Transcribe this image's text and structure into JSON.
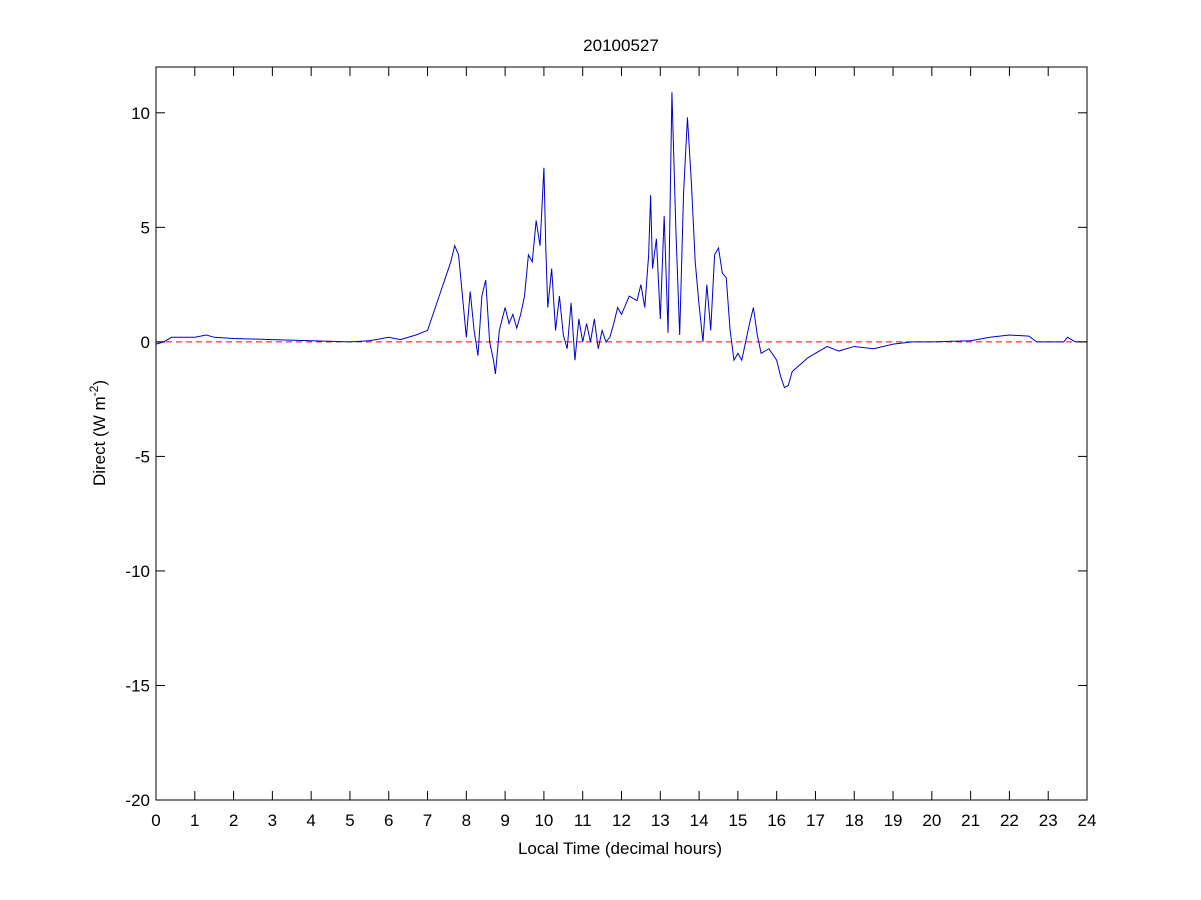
{
  "chart_data": {
    "type": "line",
    "title": "20100527",
    "xlabel": "Local Time (decimal hours)",
    "ylabel": {
      "text": "Direct (W m",
      "superscript": "-2",
      "suffix": ")"
    },
    "xlim": [
      0,
      24
    ],
    "ylim": [
      -20,
      12
    ],
    "xticks": [
      0,
      1,
      2,
      3,
      4,
      5,
      6,
      7,
      8,
      9,
      10,
      11,
      12,
      13,
      14,
      15,
      16,
      17,
      18,
      19,
      20,
      21,
      22,
      23,
      24
    ],
    "yticks": [
      -20,
      -15,
      -10,
      -5,
      0,
      5,
      10
    ],
    "reference_line": {
      "value": 0,
      "color": "#ff0000"
    },
    "x": [
      0,
      0.2,
      0.4,
      1.0,
      1.3,
      1.5,
      2,
      3,
      4,
      5,
      5.5,
      6,
      6.3,
      6.7,
      7.0,
      7.2,
      7.4,
      7.6,
      7.7,
      7.8,
      7.9,
      8.0,
      8.1,
      8.2,
      8.3,
      8.4,
      8.5,
      8.6,
      8.7,
      8.75,
      8.85,
      9.0,
      9.1,
      9.2,
      9.3,
      9.4,
      9.5,
      9.6,
      9.7,
      9.8,
      9.9,
      10.0,
      10.05,
      10.1,
      10.2,
      10.3,
      10.4,
      10.5,
      10.6,
      10.7,
      10.8,
      10.9,
      11.0,
      11.1,
      11.2,
      11.3,
      11.4,
      11.5,
      11.6,
      11.7,
      11.8,
      11.9,
      12.0,
      12.2,
      12.4,
      12.5,
      12.6,
      12.7,
      12.75,
      12.8,
      12.9,
      13.0,
      13.1,
      13.2,
      13.3,
      13.4,
      13.5,
      13.6,
      13.7,
      13.8,
      13.9,
      14.0,
      14.1,
      14.2,
      14.3,
      14.4,
      14.5,
      14.6,
      14.7,
      14.8,
      14.9,
      15.0,
      15.1,
      15.2,
      15.3,
      15.4,
      15.5,
      15.6,
      15.8,
      16.0,
      16.1,
      16.2,
      16.3,
      16.4,
      16.6,
      16.8,
      17.0,
      17.3,
      17.6,
      18,
      18.5,
      19,
      19.5,
      20,
      21,
      21.5,
      22,
      22.5,
      22.7,
      23,
      23.4,
      23.5,
      23.7,
      24
    ],
    "series": [
      {
        "color": "#0000cc",
        "values": [
          -0.1,
          0,
          0.2,
          0.2,
          0.3,
          0.2,
          0.15,
          0.1,
          0.05,
          0,
          0.05,
          0.2,
          0.1,
          0.3,
          0.5,
          1.5,
          2.5,
          3.5,
          4.2,
          3.8,
          2,
          0.2,
          2.2,
          0.5,
          -0.6,
          2.0,
          2.7,
          0,
          -0.8,
          -1.4,
          0.5,
          1.5,
          0.8,
          1.2,
          0.6,
          1.2,
          2.0,
          3.8,
          3.5,
          5.3,
          4.2,
          7.6,
          4,
          1.5,
          3.2,
          0.5,
          2.0,
          0.3,
          -0.3,
          1.7,
          -0.8,
          1.0,
          0,
          0.8,
          0,
          1.0,
          -0.3,
          0.5,
          0,
          0.2,
          0.8,
          1.5,
          1.2,
          2.0,
          1.8,
          2.5,
          1.5,
          3.8,
          6.4,
          3.2,
          4.5,
          1.0,
          5.5,
          0.4,
          10.9,
          5.0,
          0.3,
          6.5,
          9.8,
          7.0,
          3.5,
          1.6,
          0.0,
          2.5,
          0.5,
          3.8,
          4.1,
          3.0,
          2.8,
          0.5,
          -0.8,
          -0.5,
          -0.8,
          0,
          0.8,
          1.5,
          0.3,
          -0.5,
          -0.3,
          -0.8,
          -1.5,
          -2.0,
          -1.9,
          -1.3,
          -1.0,
          -0.7,
          -0.5,
          -0.2,
          -0.4,
          -0.2,
          -0.3,
          -0.1,
          0,
          0,
          0.05,
          0.2,
          0.3,
          0.25,
          0,
          0,
          0,
          0.2,
          0,
          0
        ]
      }
    ]
  }
}
